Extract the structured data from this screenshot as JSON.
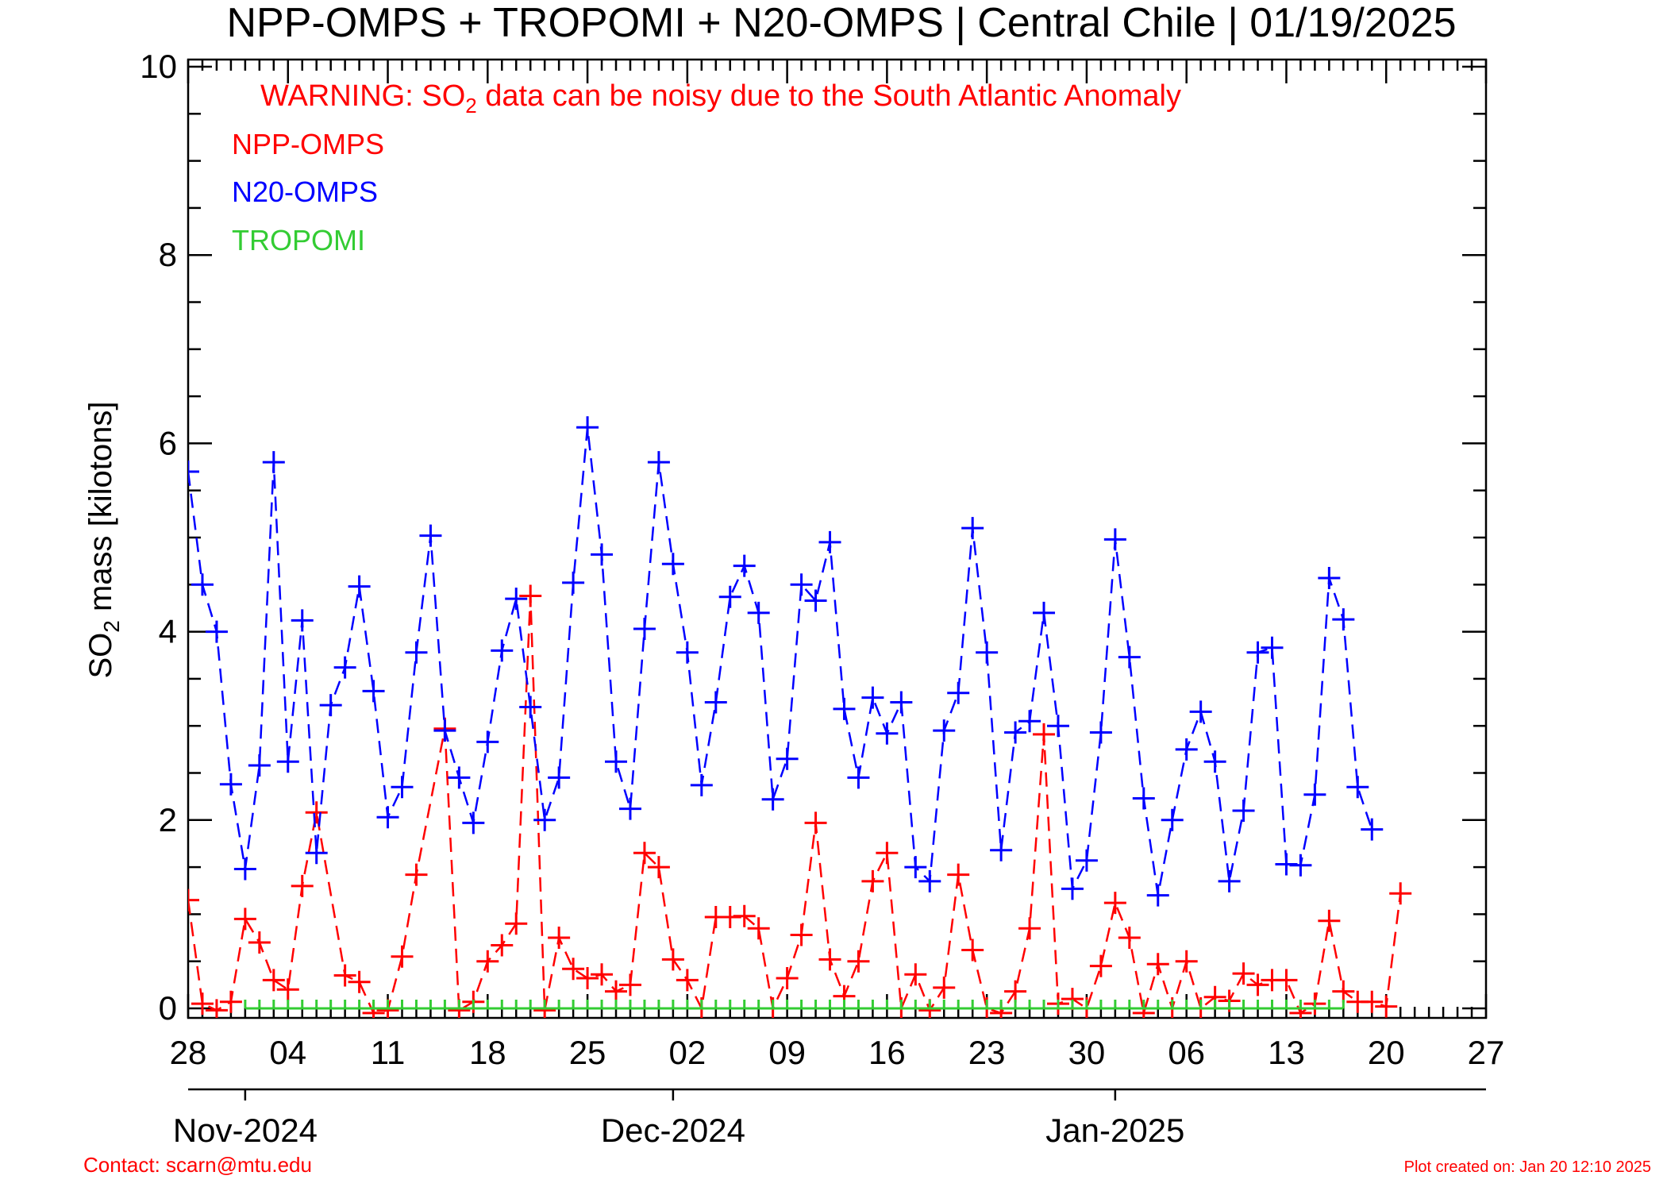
{
  "chart_data": {
    "type": "line",
    "title": "NPP-OMPS + TROPOMI + N20-OMPS | Central Chile | 01/19/2025",
    "warning": {
      "prefix": "WARNING: SO",
      "subscript": "2",
      "suffix": " data can be noisy due to the South Atlantic Anomaly"
    },
    "ylabel": {
      "prefix": "SO",
      "subscript": "2",
      "suffix": " mass [kilotons]"
    },
    "ylim": [
      0,
      10
    ],
    "y_ticks": [
      "0",
      "2",
      "4",
      "6",
      "8",
      "10"
    ],
    "x_range": [
      "2024-10-28",
      "2025-01-27"
    ],
    "x_tick_labels": [
      "28",
      "04",
      "11",
      "18",
      "25",
      "02",
      "09",
      "16",
      "23",
      "30",
      "06",
      "13",
      "20",
      "27"
    ],
    "months": [
      {
        "label": "Nov-2024",
        "boundary": "2024-11-01"
      },
      {
        "label": "Dec-2024",
        "boundary": "2024-12-01"
      },
      {
        "label": "Jan-2025",
        "boundary": "2025-01-01"
      }
    ],
    "grid": false,
    "legend_position": "top-left",
    "series": [
      {
        "name": "NPP-OMPS",
        "color": "#ff0000",
        "style": "dashed",
        "marker": "plus",
        "points": [
          [
            "2024-10-28",
            1.15
          ],
          [
            "2024-10-29",
            0.05
          ],
          [
            "2024-10-30",
            -0.02
          ],
          [
            "2024-10-31",
            0.07
          ],
          [
            "2024-11-01",
            0.95
          ],
          [
            "2024-11-02",
            0.7
          ],
          [
            "2024-11-03",
            0.3
          ],
          [
            "2024-11-04",
            0.2
          ],
          [
            "2024-11-05",
            1.3
          ],
          [
            "2024-11-06",
            2.08
          ],
          [
            "2024-11-08",
            0.35
          ],
          [
            "2024-11-09",
            0.28
          ],
          [
            "2024-11-10",
            -0.05
          ],
          [
            "2024-11-11",
            -0.02
          ],
          [
            "2024-11-12",
            0.55
          ],
          [
            "2024-11-13",
            1.42
          ],
          [
            "2024-11-15",
            2.97
          ],
          [
            "2024-11-16",
            -0.02
          ],
          [
            "2024-11-17",
            0.07
          ],
          [
            "2024-11-18",
            0.5
          ],
          [
            "2024-11-19",
            0.67
          ],
          [
            "2024-11-20",
            0.9
          ],
          [
            "2024-11-21",
            4.38
          ],
          [
            "2024-11-22",
            -0.02
          ],
          [
            "2024-11-23",
            0.75
          ],
          [
            "2024-11-24",
            0.42
          ],
          [
            "2024-11-25",
            0.32
          ],
          [
            "2024-11-26",
            0.36
          ],
          [
            "2024-11-27",
            0.18
          ],
          [
            "2024-11-28",
            0.25
          ],
          [
            "2024-11-29",
            1.65
          ],
          [
            "2024-11-30",
            1.5
          ],
          [
            "2024-12-01",
            0.52
          ],
          [
            "2024-12-02",
            0.3
          ],
          [
            "2024-12-03",
            0.0
          ],
          [
            "2024-12-04",
            0.97
          ],
          [
            "2024-12-05",
            0.97
          ],
          [
            "2024-12-06",
            0.98
          ],
          [
            "2024-12-07",
            0.85
          ],
          [
            "2024-12-08",
            0.0
          ],
          [
            "2024-12-09",
            0.32
          ],
          [
            "2024-12-10",
            0.78
          ],
          [
            "2024-12-11",
            1.97
          ],
          [
            "2024-12-12",
            0.52
          ],
          [
            "2024-12-13",
            0.13
          ],
          [
            "2024-12-14",
            0.5
          ],
          [
            "2024-12-15",
            1.35
          ],
          [
            "2024-12-16",
            1.65
          ],
          [
            "2024-12-17",
            0.0
          ],
          [
            "2024-12-18",
            0.36
          ],
          [
            "2024-12-19",
            -0.02
          ],
          [
            "2024-12-20",
            0.22
          ],
          [
            "2024-12-21",
            1.42
          ],
          [
            "2024-12-22",
            0.62
          ],
          [
            "2024-12-23",
            0.0
          ],
          [
            "2024-12-24",
            -0.05
          ],
          [
            "2024-12-25",
            0.18
          ],
          [
            "2024-12-26",
            0.85
          ],
          [
            "2024-12-27",
            2.91
          ],
          [
            "2024-12-28",
            0.05
          ],
          [
            "2024-12-29",
            0.1
          ],
          [
            "2024-12-30",
            0.0
          ],
          [
            "2024-12-31",
            0.45
          ],
          [
            "2025-01-01",
            1.12
          ],
          [
            "2025-01-02",
            0.75
          ],
          [
            "2025-01-03",
            -0.05
          ],
          [
            "2025-01-04",
            0.47
          ],
          [
            "2025-01-05",
            0.0
          ],
          [
            "2025-01-06",
            0.5
          ],
          [
            "2025-01-07",
            0.0
          ],
          [
            "2025-01-08",
            0.12
          ],
          [
            "2025-01-09",
            0.08
          ],
          [
            "2025-01-10",
            0.37
          ],
          [
            "2025-01-11",
            0.25
          ],
          [
            "2025-01-12",
            0.3
          ],
          [
            "2025-01-13",
            0.3
          ],
          [
            "2025-01-14",
            -0.05
          ],
          [
            "2025-01-15",
            0.05
          ],
          [
            "2025-01-16",
            0.93
          ],
          [
            "2025-01-17",
            0.18
          ],
          [
            "2025-01-18",
            0.07
          ],
          [
            "2025-01-19",
            0.07
          ],
          [
            "2025-01-20",
            0.02
          ],
          [
            "2025-01-21",
            1.22
          ]
        ]
      },
      {
        "name": "N20-OMPS",
        "color": "#0000ff",
        "style": "dashed",
        "marker": "plus",
        "points": [
          [
            "2024-10-28",
            5.7
          ],
          [
            "2024-10-29",
            4.5
          ],
          [
            "2024-10-30",
            4.0
          ],
          [
            "2024-10-31",
            2.38
          ],
          [
            "2024-11-01",
            1.48
          ],
          [
            "2024-11-02",
            2.58
          ],
          [
            "2024-11-03",
            5.8
          ],
          [
            "2024-11-04",
            2.62
          ],
          [
            "2024-11-05",
            4.12
          ],
          [
            "2024-11-06",
            1.65
          ],
          [
            "2024-11-07",
            3.22
          ],
          [
            "2024-11-08",
            3.62
          ],
          [
            "2024-11-09",
            4.48
          ],
          [
            "2024-11-10",
            3.37
          ],
          [
            "2024-11-11",
            2.03
          ],
          [
            "2024-11-12",
            2.35
          ],
          [
            "2024-11-13",
            3.78
          ],
          [
            "2024-11-14",
            5.02
          ],
          [
            "2024-11-15",
            2.95
          ],
          [
            "2024-11-16",
            2.45
          ],
          [
            "2024-11-17",
            1.97
          ],
          [
            "2024-11-18",
            2.83
          ],
          [
            "2024-11-19",
            3.8
          ],
          [
            "2024-11-20",
            4.35
          ],
          [
            "2024-11-21",
            3.2
          ],
          [
            "2024-11-22",
            2.0
          ],
          [
            "2024-11-23",
            2.45
          ],
          [
            "2024-11-24",
            4.52
          ],
          [
            "2024-11-25",
            6.17
          ],
          [
            "2024-11-26",
            4.82
          ],
          [
            "2024-11-27",
            2.62
          ],
          [
            "2024-11-28",
            2.12
          ],
          [
            "2024-11-29",
            4.03
          ],
          [
            "2024-11-30",
            5.8
          ],
          [
            "2024-12-01",
            4.72
          ],
          [
            "2024-12-02",
            3.78
          ],
          [
            "2024-12-03",
            2.37
          ],
          [
            "2024-12-04",
            3.25
          ],
          [
            "2024-12-05",
            4.37
          ],
          [
            "2024-12-06",
            4.7
          ],
          [
            "2024-12-07",
            4.2
          ],
          [
            "2024-12-08",
            2.22
          ],
          [
            "2024-12-09",
            2.65
          ],
          [
            "2024-12-10",
            4.5
          ],
          [
            "2024-12-11",
            4.33
          ],
          [
            "2024-12-12",
            4.95
          ],
          [
            "2024-12-13",
            3.18
          ],
          [
            "2024-12-14",
            2.45
          ],
          [
            "2024-12-15",
            3.3
          ],
          [
            "2024-12-16",
            2.92
          ],
          [
            "2024-12-17",
            3.25
          ],
          [
            "2024-12-18",
            1.5
          ],
          [
            "2024-12-19",
            1.35
          ],
          [
            "2024-12-20",
            2.95
          ],
          [
            "2024-12-21",
            3.35
          ],
          [
            "2024-12-22",
            5.1
          ],
          [
            "2024-12-23",
            3.78
          ],
          [
            "2024-12-24",
            1.68
          ],
          [
            "2024-12-25",
            2.93
          ],
          [
            "2024-12-26",
            3.05
          ],
          [
            "2024-12-27",
            4.2
          ],
          [
            "2024-12-28",
            3.0
          ],
          [
            "2024-12-29",
            1.27
          ],
          [
            "2024-12-30",
            1.57
          ],
          [
            "2024-12-31",
            2.93
          ],
          [
            "2025-01-01",
            4.98
          ],
          [
            "2025-01-02",
            3.73
          ],
          [
            "2025-01-03",
            2.23
          ],
          [
            "2025-01-04",
            1.2
          ],
          [
            "2025-01-05",
            2.0
          ],
          [
            "2025-01-06",
            2.75
          ],
          [
            "2025-01-07",
            3.15
          ],
          [
            "2025-01-08",
            2.62
          ],
          [
            "2025-01-09",
            1.35
          ],
          [
            "2025-01-10",
            2.1
          ],
          [
            "2025-01-11",
            3.78
          ],
          [
            "2025-01-12",
            3.83
          ],
          [
            "2025-01-13",
            1.53
          ],
          [
            "2025-01-14",
            1.52
          ],
          [
            "2025-01-15",
            2.27
          ],
          [
            "2025-01-16",
            4.57
          ],
          [
            "2025-01-17",
            4.13
          ],
          [
            "2025-01-18",
            2.35
          ],
          [
            "2025-01-19",
            1.9
          ]
        ]
      },
      {
        "name": "TROPOMI",
        "color": "#33cc33",
        "style": "solid",
        "marker": "tick",
        "points": [
          [
            "2024-11-01",
            0
          ],
          [
            "2024-11-02",
            0
          ],
          [
            "2024-11-03",
            0
          ],
          [
            "2024-11-04",
            0
          ],
          [
            "2024-11-05",
            0
          ],
          [
            "2024-11-06",
            0
          ],
          [
            "2024-11-07",
            0
          ],
          [
            "2024-11-08",
            0
          ],
          [
            "2024-11-09",
            0
          ],
          [
            "2024-11-10",
            0
          ],
          [
            "2024-11-11",
            0
          ],
          [
            "2024-11-12",
            0
          ],
          [
            "2024-11-13",
            0
          ],
          [
            "2024-11-14",
            0
          ],
          [
            "2024-11-15",
            0
          ],
          [
            "2024-11-16",
            0
          ],
          [
            "2024-11-17",
            0
          ],
          [
            "2024-11-18",
            0
          ],
          [
            "2024-11-19",
            0
          ],
          [
            "2024-11-20",
            0
          ],
          [
            "2024-11-21",
            0
          ],
          [
            "2024-11-22",
            0
          ],
          [
            "2024-11-23",
            0
          ],
          [
            "2024-11-24",
            0
          ],
          [
            "2024-11-25",
            0
          ],
          [
            "2024-11-26",
            0
          ],
          [
            "2024-11-27",
            0
          ],
          [
            "2024-11-28",
            0
          ],
          [
            "2024-11-29",
            0
          ],
          [
            "2024-11-30",
            0
          ],
          [
            "2024-12-01",
            0
          ],
          [
            "2024-12-02",
            0
          ],
          [
            "2024-12-03",
            0
          ],
          [
            "2024-12-04",
            0
          ],
          [
            "2024-12-05",
            0
          ],
          [
            "2024-12-06",
            0
          ],
          [
            "2024-12-07",
            0
          ],
          [
            "2024-12-08",
            0
          ],
          [
            "2024-12-09",
            0
          ],
          [
            "2024-12-10",
            0
          ],
          [
            "2024-12-11",
            0
          ],
          [
            "2024-12-12",
            0
          ],
          [
            "2024-12-13",
            0
          ],
          [
            "2024-12-14",
            0
          ],
          [
            "2024-12-15",
            0
          ],
          [
            "2024-12-16",
            0
          ],
          [
            "2024-12-17",
            0
          ],
          [
            "2024-12-18",
            0
          ],
          [
            "2024-12-19",
            0
          ],
          [
            "2024-12-20",
            0
          ],
          [
            "2024-12-21",
            0
          ],
          [
            "2024-12-22",
            0
          ],
          [
            "2024-12-23",
            0
          ],
          [
            "2024-12-24",
            0
          ],
          [
            "2024-12-25",
            0
          ],
          [
            "2024-12-26",
            0
          ],
          [
            "2024-12-27",
            0
          ],
          [
            "2024-12-28",
            0
          ],
          [
            "2024-12-29",
            0
          ],
          [
            "2024-12-30",
            0
          ],
          [
            "2024-12-31",
            0
          ],
          [
            "2025-01-01",
            0
          ],
          [
            "2025-01-02",
            0
          ],
          [
            "2025-01-03",
            0
          ],
          [
            "2025-01-04",
            0
          ],
          [
            "2025-01-05",
            0
          ],
          [
            "2025-01-06",
            0
          ],
          [
            "2025-01-07",
            0
          ],
          [
            "2025-01-08",
            0
          ],
          [
            "2025-01-09",
            0
          ],
          [
            "2025-01-10",
            0
          ],
          [
            "2025-01-11",
            0
          ],
          [
            "2025-01-12",
            0
          ],
          [
            "2025-01-13",
            0
          ],
          [
            "2025-01-14",
            0
          ],
          [
            "2025-01-15",
            0
          ],
          [
            "2025-01-16",
            0
          ],
          [
            "2025-01-17",
            0
          ]
        ]
      }
    ]
  },
  "footer": {
    "contact": "Contact: scarn@mtu.edu",
    "created": "Plot created on: Jan 20 12:10 2025"
  }
}
